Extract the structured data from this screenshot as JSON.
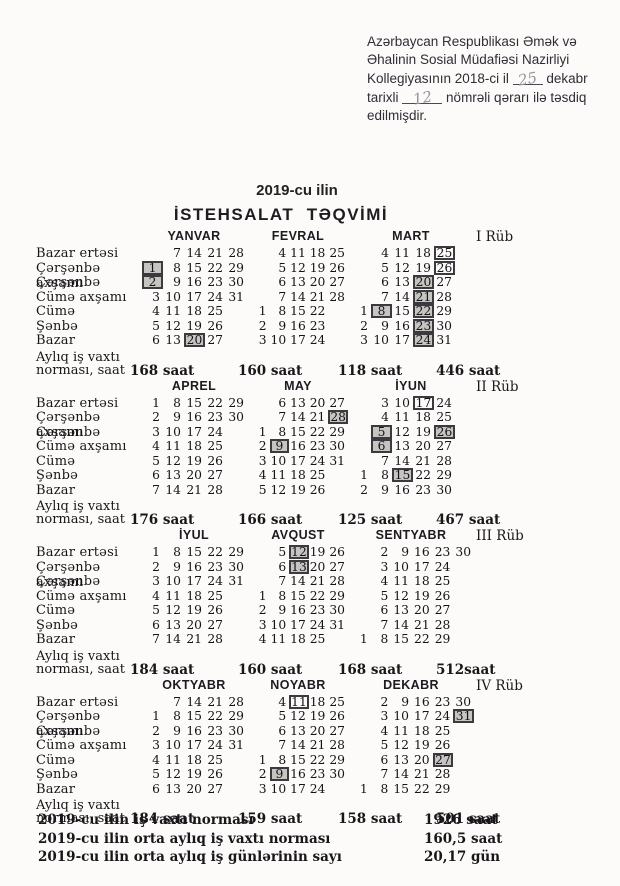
{
  "approval_note": {
    "line1": "Azərbaycan Respublikası Əmək və",
    "line2": "Əhalinin Sosial Müdafiəsi Nazirliyi",
    "line3_pre": "Kollegiyasının  2018-ci il",
    "line3_hand": "25",
    "line3_post": "dekabr",
    "line4_pre": "tarixli",
    "line4_hand": "12",
    "line4_post": "nömrəli qərarı ilə təsdiq",
    "line5": "edilmişdir."
  },
  "title": {
    "year": "2019-cu ilin",
    "main": "İSTEHSALAT  TƏQVİMİ"
  },
  "weekday_labels": [
    "Bazar ertəsi",
    "Çərşənbə axşamı",
    "Çərşənbə",
    "Cümə  axşamı",
    "Cümə",
    "Şənbə",
    "Bazar"
  ],
  "norm_label": {
    "line1": "Aylıq iş vaxtı",
    "line2": "norması, saat"
  },
  "highlight_legend": {
    "shaded": "qeyri-iş günü (holiday, gray fill)",
    "boxed": "köçürülmüş iş günü (box only)"
  },
  "colors": {
    "ink": "#1a1a1c",
    "holiday_fill": "#c6c5c2",
    "box_border": "#3a3a3f",
    "paper": "#fcfbf9"
  },
  "quarters": [
    {
      "label": "I Rüb",
      "total": "446 saat",
      "months": [
        {
          "name": "YANVAR",
          "norm": "168 saat",
          "rows": [
            [
              "",
              "7",
              "14",
              "21",
              "28"
            ],
            [
              {
                "d": "1",
                "hl": "shaded"
              },
              "8",
              "15",
              "22",
              "29"
            ],
            [
              {
                "d": "2",
                "hl": "shaded"
              },
              "9",
              "16",
              "23",
              "30"
            ],
            [
              "3",
              "10",
              "17",
              "24",
              "31"
            ],
            [
              "4",
              "11",
              "18",
              "25",
              ""
            ],
            [
              "5",
              "12",
              "19",
              "26",
              ""
            ],
            [
              "6",
              "13",
              {
                "d": "20",
                "hl": "shaded"
              },
              "27",
              ""
            ]
          ]
        },
        {
          "name": "FEVRAL",
          "norm": "160 saat",
          "rows": [
            [
              "",
              "4",
              "11",
              "18",
              "25"
            ],
            [
              "",
              "5",
              "12",
              "19",
              "26"
            ],
            [
              "",
              "6",
              "13",
              "20",
              "27"
            ],
            [
              "",
              "7",
              "14",
              "21",
              "28"
            ],
            [
              "1",
              "8",
              "15",
              "22",
              ""
            ],
            [
              "2",
              "9",
              "16",
              "23",
              ""
            ],
            [
              "3",
              "10",
              "17",
              "24",
              ""
            ]
          ]
        },
        {
          "name": "MART",
          "norm": "118 saat",
          "rows": [
            [
              "",
              "4",
              "11",
              "18",
              {
                "d": "25",
                "hl": "boxed"
              }
            ],
            [
              "",
              "5",
              "12",
              "19",
              {
                "d": "26",
                "hl": "boxed"
              }
            ],
            [
              "",
              "6",
              "13",
              {
                "d": "20",
                "hl": "shaded"
              },
              "27"
            ],
            [
              "",
              "7",
              "14",
              {
                "d": "21",
                "hl": "shaded"
              },
              "28"
            ],
            [
              "1",
              {
                "d": "8",
                "hl": "shaded"
              },
              "15",
              {
                "d": "22",
                "hl": "shaded"
              },
              "29"
            ],
            [
              "2",
              "9",
              "16",
              {
                "d": "23",
                "hl": "shaded"
              },
              "30"
            ],
            [
              "3",
              "10",
              "17",
              {
                "d": "24",
                "hl": "shaded"
              },
              "31"
            ]
          ]
        }
      ]
    },
    {
      "label": "II Rüb",
      "total": "467 saat",
      "months": [
        {
          "name": "APREL",
          "norm": "176 saat",
          "rows": [
            [
              "1",
              "8",
              "15",
              "22",
              "29"
            ],
            [
              "2",
              "9",
              "16",
              "23",
              "30"
            ],
            [
              "3",
              "10",
              "17",
              "24",
              ""
            ],
            [
              "4",
              "11",
              "18",
              "25",
              ""
            ],
            [
              "5",
              "12",
              "19",
              "26",
              ""
            ],
            [
              "6",
              "13",
              "20",
              "27",
              ""
            ],
            [
              "7",
              "14",
              "21",
              "28",
              ""
            ]
          ]
        },
        {
          "name": "MAY",
          "norm": "166 saat",
          "rows": [
            [
              "",
              "6",
              "13",
              "20",
              "27"
            ],
            [
              "",
              "7",
              "14",
              "21",
              {
                "d": "28",
                "hl": "shaded"
              }
            ],
            [
              "1",
              "8",
              "15",
              "22",
              "29"
            ],
            [
              "2",
              {
                "d": "9",
                "hl": "shaded"
              },
              "16",
              "23",
              "30"
            ],
            [
              "3",
              "10",
              "17",
              "24",
              "31"
            ],
            [
              "4",
              "11",
              "18",
              "25",
              ""
            ],
            [
              "5",
              "12",
              "19",
              "26",
              ""
            ]
          ]
        },
        {
          "name": "İYUN",
          "norm": "125 saat",
          "rows": [
            [
              "",
              "3",
              "10",
              {
                "d": "17",
                "hl": "boxed"
              },
              "24"
            ],
            [
              "",
              "4",
              "11",
              "18",
              "25"
            ],
            [
              "",
              {
                "d": "5",
                "hl": "shaded"
              },
              "12",
              "19",
              {
                "d": "26",
                "hl": "shaded"
              }
            ],
            [
              "",
              {
                "d": "6",
                "hl": "shaded"
              },
              "13",
              "20",
              "27"
            ],
            [
              "",
              "7",
              "14",
              "21",
              "28"
            ],
            [
              "1",
              "8",
              {
                "d": "15",
                "hl": "shaded"
              },
              "22",
              "29"
            ],
            [
              "2",
              "9",
              "16",
              "23",
              "30"
            ]
          ]
        }
      ]
    },
    {
      "label": "III Rüb",
      "total": "512saat",
      "months": [
        {
          "name": "İYUL",
          "norm": "184 saat",
          "rows": [
            [
              "1",
              "8",
              "15",
              "22",
              "29"
            ],
            [
              "2",
              "9",
              "16",
              "23",
              "30"
            ],
            [
              "3",
              "10",
              "17",
              "24",
              "31"
            ],
            [
              "4",
              "11",
              "18",
              "25",
              ""
            ],
            [
              "5",
              "12",
              "19",
              "26",
              ""
            ],
            [
              "6",
              "13",
              "20",
              "27",
              ""
            ],
            [
              "7",
              "14",
              "21",
              "28",
              ""
            ]
          ]
        },
        {
          "name": "AVQUST",
          "norm": "160 saat",
          "rows": [
            [
              "",
              "5",
              {
                "d": "12",
                "hl": "shaded"
              },
              "19",
              "26"
            ],
            [
              "",
              "6",
              {
                "d": "13",
                "hl": "shaded"
              },
              "20",
              "27"
            ],
            [
              "",
              "7",
              "14",
              "21",
              "28"
            ],
            [
              "1",
              "8",
              "15",
              "22",
              "29"
            ],
            [
              "2",
              "9",
              "16",
              "23",
              "30"
            ],
            [
              "3",
              "10",
              "17",
              "24",
              "31"
            ],
            [
              "4",
              "11",
              "18",
              "25",
              ""
            ]
          ]
        },
        {
          "name": "SENTYABR",
          "norm": "168 saat",
          "rows": [
            [
              "",
              "2",
              "9",
              "16",
              "23",
              "30"
            ],
            [
              "",
              "3",
              "10",
              "17",
              "24",
              ""
            ],
            [
              "",
              "4",
              "11",
              "18",
              "25",
              ""
            ],
            [
              "",
              "5",
              "12",
              "19",
              "26",
              ""
            ],
            [
              "",
              "6",
              "13",
              "20",
              "27",
              ""
            ],
            [
              "",
              "7",
              "14",
              "21",
              "28",
              ""
            ],
            [
              "1",
              "8",
              "15",
              "22",
              "29",
              ""
            ]
          ]
        }
      ]
    },
    {
      "label": "IV Rüb",
      "total": "501 saat",
      "months": [
        {
          "name": "OKTYABR",
          "norm": "184 saat",
          "rows": [
            [
              "",
              "7",
              "14",
              "21",
              "28"
            ],
            [
              "1",
              "8",
              "15",
              "22",
              "29"
            ],
            [
              "2",
              "9",
              "16",
              "23",
              "30"
            ],
            [
              "3",
              "10",
              "17",
              "24",
              "31"
            ],
            [
              "4",
              "11",
              "18",
              "25",
              ""
            ],
            [
              "5",
              "12",
              "19",
              "26",
              ""
            ],
            [
              "6",
              "13",
              "20",
              "27",
              ""
            ]
          ]
        },
        {
          "name": "NOYABR",
          "norm": "159 saat",
          "rows": [
            [
              "",
              "4",
              {
                "d": "11",
                "hl": "boxed"
              },
              "18",
              "25"
            ],
            [
              "",
              "5",
              "12",
              "19",
              "26"
            ],
            [
              "",
              "6",
              "13",
              "20",
              "27"
            ],
            [
              "",
              "7",
              "14",
              "21",
              "28"
            ],
            [
              "1",
              "8",
              "15",
              "22",
              "29"
            ],
            [
              "2",
              {
                "d": "9",
                "hl": "shaded"
              },
              "16",
              "23",
              "30"
            ],
            [
              "3",
              "10",
              "17",
              "24",
              ""
            ]
          ]
        },
        {
          "name": "DEKABR",
          "norm": "158 saat",
          "rows": [
            [
              "",
              "2",
              "9",
              "16",
              "23",
              "30"
            ],
            [
              "",
              "3",
              "10",
              "17",
              "24",
              {
                "d": "31",
                "hl": "shaded"
              }
            ],
            [
              "",
              "4",
              "11",
              "18",
              "25",
              ""
            ],
            [
              "",
              "5",
              "12",
              "19",
              "26",
              ""
            ],
            [
              "",
              "6",
              "13",
              "20",
              {
                "d": "27",
                "hl": "shaded"
              },
              ""
            ],
            [
              "",
              "7",
              "14",
              "21",
              "28",
              ""
            ],
            [
              "1",
              "8",
              "15",
              "22",
              "29",
              ""
            ]
          ]
        }
      ]
    }
  ],
  "summary": {
    "rows": [
      {
        "label": "2019-cu ilin iş vaxtı norması",
        "value": "1926 saat"
      },
      {
        "label": "2019-cu ilin orta aylıq iş vaxtı norması",
        "value": "160,5 saat"
      },
      {
        "label": "2019-cu ilin orta aylıq iş günlərinin sayı",
        "value": "20,17 gün"
      }
    ]
  }
}
